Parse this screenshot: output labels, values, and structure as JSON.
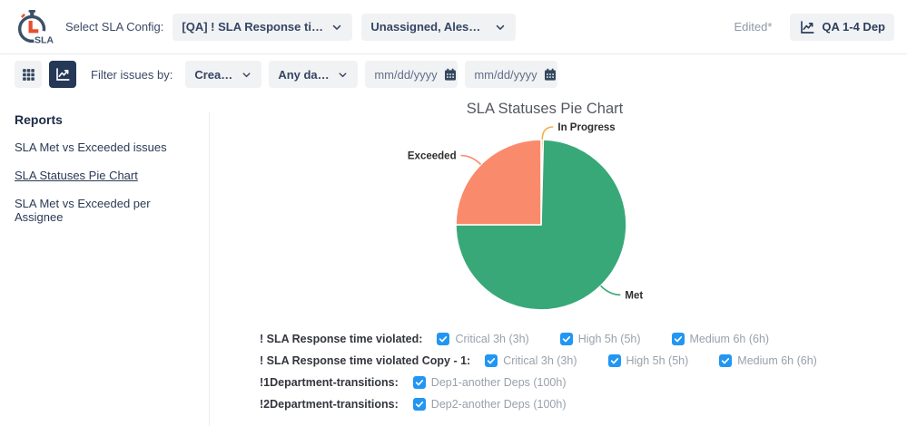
{
  "header": {
    "logo_text": "SLA",
    "select_label": "Select SLA Config:",
    "config_dropdown_value": "[QA] ! SLA Response time viol...",
    "assignee_dropdown_value": "Unassigned, Alesya K...",
    "edited_badge": "Edited*",
    "report_button_label": "QA 1-4 Dep"
  },
  "toolbar": {
    "filter_label": "Filter issues by:",
    "field_dropdown_value": "Created",
    "range_dropdown_value": "Any dates",
    "date_from_placeholder": "mm/dd/yyyy",
    "date_to_placeholder": "mm/dd/yyyy"
  },
  "sidebar": {
    "title": "Reports",
    "items": [
      {
        "label": "SLA Met vs Exceeded issues",
        "active": false
      },
      {
        "label": "SLA Statuses Pie Chart",
        "active": true
      },
      {
        "label": "SLA Met vs Exceeded per Assignee",
        "active": false
      }
    ]
  },
  "chart_data": {
    "type": "pie",
    "title": "SLA Statuses Pie Chart",
    "slices": [
      {
        "label": "In Progress",
        "value": 0.4,
        "color": "#F2B04C"
      },
      {
        "label": "Met",
        "value": 74.6,
        "color": "#39A878"
      },
      {
        "label": "Exceeded",
        "value": 25.0,
        "color": "#FA8A6C"
      }
    ],
    "start_angle_deg": -90,
    "direction": "clockwise",
    "label_style": "callout"
  },
  "filters": {
    "rows": [
      {
        "label": "! SLA Response time violated:",
        "options": [
          {
            "label": "Critical 3h (3h)",
            "checked": true
          },
          {
            "label": "High 5h (5h)",
            "checked": true
          },
          {
            "label": "Medium 6h (6h)",
            "checked": true
          }
        ]
      },
      {
        "label": "! SLA Response time violated Copy - 1:",
        "options": [
          {
            "label": "Critical 3h (3h)",
            "checked": true
          },
          {
            "label": "High 5h (5h)",
            "checked": true
          },
          {
            "label": "Medium 6h (6h)",
            "checked": true
          }
        ]
      },
      {
        "label": "!1Department-transitions:",
        "options": [
          {
            "label": "Dep1-another Deps (100h)",
            "checked": true
          }
        ]
      },
      {
        "label": "!2Department-transitions:",
        "options": [
          {
            "label": "Dep2-another Deps (100h)",
            "checked": true
          }
        ]
      }
    ]
  },
  "icons": {
    "logo": "sla-stopwatch",
    "grid_view": "grid",
    "chart_view": "line-chart",
    "report_button": "line-chart",
    "dropdown": "chevron-down",
    "date": "calendar",
    "checkbox": "checkmark"
  },
  "colors": {
    "navy": "#253858",
    "icon_navy": "#33475F",
    "control_bg": "#F1F2F4",
    "checkbox_blue": "#2196F3",
    "muted_text": "#98A1AC",
    "divider": "#ECEDEF",
    "logo_red": "#E94E2E",
    "pie_met": "#39A878",
    "pie_exceeded": "#FA8A6C",
    "pie_in_progress": "#F2B04C"
  }
}
